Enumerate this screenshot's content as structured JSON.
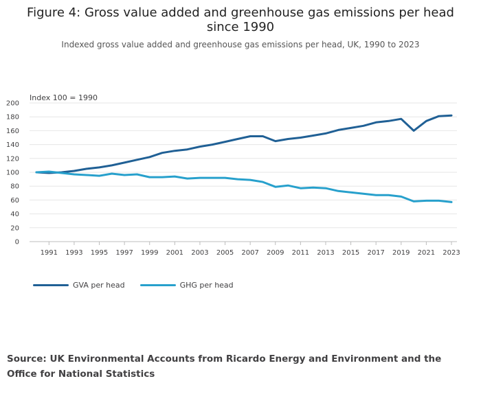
{
  "header": {
    "title": "Figure 4: Gross value added and greenhouse gas emissions per head since 1990",
    "subtitle": "Indexed gross value added and greenhouse gas emissions per head, UK, 1990 to 2023"
  },
  "chart_data": {
    "type": "line",
    "unit_label": "Index 100 = 1990",
    "x": [
      1990,
      1991,
      1992,
      1993,
      1994,
      1995,
      1996,
      1997,
      1998,
      1999,
      2000,
      2001,
      2002,
      2003,
      2004,
      2005,
      2006,
      2007,
      2008,
      2009,
      2010,
      2011,
      2012,
      2013,
      2014,
      2015,
      2016,
      2017,
      2018,
      2019,
      2020,
      2021,
      2022,
      2023
    ],
    "x_tick_labels": [
      "1991",
      "1993",
      "1995",
      "1997",
      "1999",
      "2001",
      "2003",
      "2005",
      "2007",
      "2009",
      "2011",
      "2013",
      "2015",
      "2017",
      "2019",
      "2021",
      "2023"
    ],
    "y_ticks": [
      "0",
      "20",
      "40",
      "60",
      "80",
      "100",
      "120",
      "140",
      "160",
      "180",
      "200"
    ],
    "ylim": [
      0,
      200
    ],
    "series": [
      {
        "name": "GVA per head",
        "color": "#206095",
        "values": [
          100,
          99,
          100,
          102,
          105,
          107,
          110,
          114,
          118,
          122,
          128,
          131,
          133,
          137,
          140,
          144,
          148,
          152,
          152,
          145,
          148,
          150,
          153,
          156,
          161,
          164,
          167,
          172,
          174,
          177,
          160,
          174,
          181,
          182
        ]
      },
      {
        "name": "GHG per head",
        "color": "#27a0cc",
        "values": [
          100,
          101,
          99,
          97,
          96,
          95,
          98,
          96,
          97,
          93,
          93,
          94,
          91,
          92,
          92,
          92,
          90,
          89,
          86,
          79,
          81,
          77,
          78,
          77,
          73,
          71,
          69,
          67,
          67,
          65,
          58,
          59,
          59,
          57
        ]
      }
    ],
    "legend_position": "bottom-left"
  },
  "footer": {
    "source": "Source: UK Environmental Accounts from Ricardo Energy and Environment and the Office for National Statistics"
  }
}
